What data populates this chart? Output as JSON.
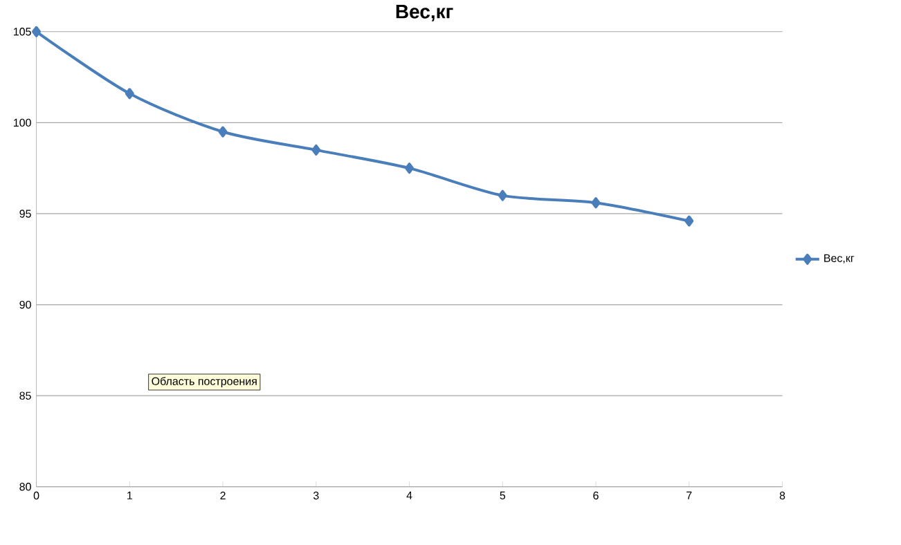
{
  "chart_data": {
    "type": "line",
    "title": "Вес,кг",
    "x": [
      0,
      1,
      2,
      3,
      4,
      5,
      6,
      7
    ],
    "series": [
      {
        "name": "Вес,кг",
        "color": "#4a7ebb",
        "values": [
          105,
          101.6,
          99.5,
          98.5,
          97.5,
          96,
          95.6,
          94.6
        ]
      }
    ],
    "xlim": [
      0,
      8
    ],
    "xticks": [
      0,
      1,
      2,
      3,
      4,
      5,
      6,
      7,
      8
    ],
    "ylim": [
      80,
      105
    ],
    "yticks": [
      80,
      85,
      90,
      95,
      100,
      105
    ],
    "grid": "y",
    "legend": "right",
    "marker": "diamond",
    "line_style": "solid",
    "annotations": [
      "Область построения"
    ]
  }
}
